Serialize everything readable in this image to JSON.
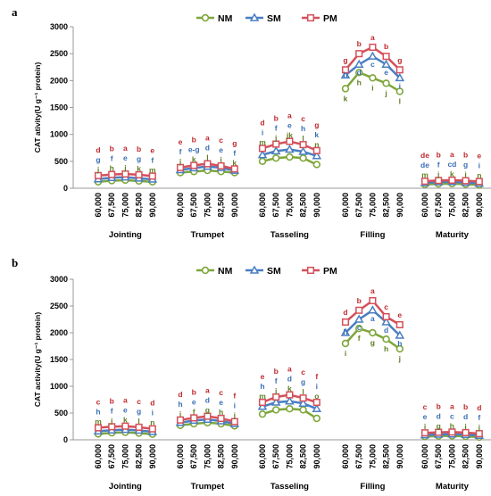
{
  "colors": {
    "NM": "#7ea63a",
    "SM": "#4a7ec2",
    "PM": "#d4505a",
    "letter_NM": "#5e7e24",
    "letter_SM": "#3a6fb5",
    "letter_PM": "#c0282e"
  },
  "chart_data": [
    {
      "panel": "a",
      "type": "line",
      "ylabel": "CAT ativity(U g⁻¹ protein)",
      "ylim": [
        0,
        3000
      ],
      "yticks": [
        "0",
        "500",
        "1000",
        "1500",
        "2000",
        "2500",
        "3000"
      ],
      "legend": [
        "NM",
        "SM",
        "PM"
      ],
      "legend_position": "top-center",
      "x_ticks": [
        "60,000",
        "67,500",
        "75,000",
        "82,500",
        "90,000"
      ],
      "groups": [
        {
          "name": "Jointing",
          "series": {
            "NM": {
              "values": [
                120,
                140,
                150,
                135,
                120
              ],
              "letters": [
                "j",
                "h",
                "j",
                "k",
                "m"
              ]
            },
            "SM": {
              "values": [
                170,
                195,
                205,
                185,
                165
              ],
              "letters": [
                "g",
                "f",
                "e",
                "g",
                "f"
              ]
            },
            "PM": {
              "values": [
                235,
                255,
                265,
                250,
                225
              ],
              "letters": [
                "d",
                "b",
                "a",
                "b",
                "e"
              ]
            }
          }
        },
        {
          "name": "Trumpet",
          "series": {
            "NM": {
              "values": [
                290,
                310,
                330,
                310,
                290
              ],
              "letters": [
                "j",
                "k",
                "l",
                "i",
                "k"
              ]
            },
            "SM": {
              "values": [
                340,
                375,
                405,
                380,
                330
              ],
              "letters": [
                "f",
                "e-g",
                "d",
                "e",
                "f"
              ]
            },
            "PM": {
              "values": [
                385,
                425,
                455,
                415,
                360
              ],
              "letters": [
                "e",
                "b",
                "a",
                "c",
                "g"
              ]
            }
          }
        },
        {
          "name": "Tasseling",
          "series": {
            "NM": {
              "values": [
                500,
                560,
                580,
                560,
                440
              ],
              "letters": [
                "m",
                "j",
                "jk",
                "l",
                "n"
              ]
            },
            "SM": {
              "values": [
                620,
                690,
                720,
                680,
                600
              ],
              "letters": [
                "i",
                "f",
                "e",
                "h",
                "k"
              ]
            },
            "PM": {
              "values": [
                740,
                820,
                870,
                810,
                700
              ],
              "letters": [
                "d",
                "b",
                "a",
                "c",
                "g"
              ]
            }
          }
        },
        {
          "name": "Filling",
          "series": {
            "NM": {
              "values": [
                1850,
                2150,
                2050,
                1950,
                1800
              ],
              "letters": [
                "k",
                "h",
                "i",
                "j",
                "l"
              ]
            },
            "SM": {
              "values": [
                2100,
                2300,
                2450,
                2300,
                2050
              ],
              "letters": [
                "h",
                "d",
                "c",
                "e",
                "i"
              ]
            },
            "PM": {
              "values": [
                2200,
                2500,
                2620,
                2450,
                2200
              ],
              "letters": [
                "g",
                "b",
                "a",
                "b",
                "g"
              ]
            }
          }
        },
        {
          "name": "Maturity",
          "series": {
            "NM": {
              "values": [
                70,
                80,
                85,
                75,
                60
              ],
              "letters": [
                "m",
                "j",
                "k",
                "i",
                "n"
              ]
            },
            "SM": {
              "values": [
                100,
                115,
                120,
                105,
                90
              ],
              "letters": [
                "de",
                "f",
                "cd",
                "g",
                "i"
              ]
            },
            "PM": {
              "values": [
                130,
                145,
                150,
                140,
                125
              ],
              "letters": [
                "de",
                "b",
                "a",
                "b",
                "e"
              ]
            }
          }
        }
      ]
    },
    {
      "panel": "b",
      "type": "line",
      "ylabel": "CAT activity(U g⁻¹ protein)",
      "ylim": [
        0,
        3000
      ],
      "yticks": [
        "0",
        "500",
        "1000",
        "1500",
        "2000",
        "2500",
        "3000"
      ],
      "legend": [
        "NM",
        "SM",
        "PM"
      ],
      "legend_position": "top-center",
      "x_ticks": [
        "60,000",
        "67,500",
        "75,000",
        "82,500",
        "90,000"
      ],
      "groups": [
        {
          "name": "Jointing",
          "series": {
            "NM": {
              "values": [
                110,
                130,
                140,
                125,
                105
              ],
              "letters": [
                "m",
                "j",
                "k",
                "l",
                "n"
              ]
            },
            "SM": {
              "values": [
                160,
                180,
                190,
                175,
                150
              ],
              "letters": [
                "h",
                "f",
                "e",
                "g",
                "i"
              ]
            },
            "PM": {
              "values": [
                225,
                245,
                255,
                235,
                205
              ],
              "letters": [
                "c",
                "b",
                "a",
                "c",
                "d"
              ]
            }
          }
        },
        {
          "name": "Trumpet",
          "series": {
            "NM": {
              "values": [
                270,
                300,
                320,
                300,
                260
              ],
              "letters": [
                "i",
                "f",
                "g",
                "h",
                "j"
              ]
            },
            "SM": {
              "values": [
                320,
                360,
                380,
                350,
                300
              ],
              "letters": [
                "h",
                "e",
                "d",
                "e",
                "i"
              ]
            },
            "PM": {
              "values": [
                370,
                410,
                440,
                400,
                340
              ],
              "letters": [
                "d",
                "b",
                "a",
                "c",
                "f"
              ]
            }
          }
        },
        {
          "name": "Tasseling",
          "series": {
            "NM": {
              "values": [
                480,
                560,
                580,
                560,
                400
              ],
              "letters": [
                "m",
                "j",
                "k",
                "l",
                "o"
              ]
            },
            "SM": {
              "values": [
                620,
                700,
                720,
                680,
                580
              ],
              "letters": [
                "h",
                "f",
                "d",
                "g",
                "i"
              ]
            },
            "PM": {
              "values": [
                700,
                800,
                840,
                780,
                700
              ],
              "letters": [
                "e",
                "b",
                "a",
                "c",
                "f"
              ]
            }
          }
        },
        {
          "name": "Filling",
          "series": {
            "NM": {
              "values": [
                1800,
                2080,
                2000,
                1880,
                1700
              ],
              "letters": [
                "i",
                "f",
                "g",
                "h",
                "j"
              ]
            },
            "SM": {
              "values": [
                2000,
                2250,
                2420,
                2200,
                1950
              ],
              "letters": [
                "h",
                "c",
                "a",
                "d",
                "h"
              ]
            },
            "PM": {
              "values": [
                2200,
                2420,
                2600,
                2300,
                2150
              ],
              "letters": [
                "d",
                "b",
                "a",
                "c",
                "e"
              ]
            }
          }
        },
        {
          "name": "Maturity",
          "series": {
            "NM": {
              "values": [
                60,
                70,
                75,
                65,
                50
              ],
              "letters": [
                "i",
                "g",
                "h",
                "i",
                "j"
              ]
            },
            "SM": {
              "values": [
                90,
                100,
                105,
                95,
                80
              ],
              "letters": [
                "e",
                "d",
                "c",
                "d",
                "f"
              ]
            },
            "PM": {
              "values": [
                130,
                140,
                145,
                135,
                115
              ],
              "letters": [
                "c",
                "b",
                "a",
                "b",
                "d"
              ]
            }
          }
        }
      ]
    }
  ]
}
